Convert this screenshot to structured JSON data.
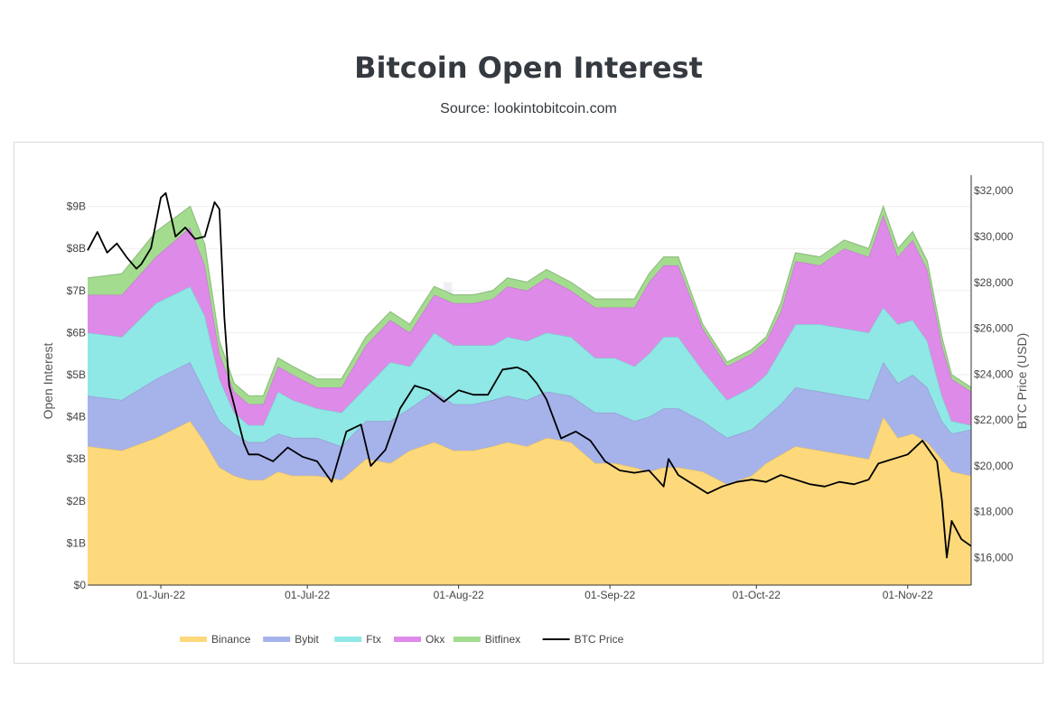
{
  "page": {
    "title": "Bitcoin Open Interest",
    "subtitle": "Source: lookintobitcoin.com",
    "watermark": [
      "look",
      "into",
      "bitcoin"
    ]
  },
  "colors": {
    "Binance": "#fdd97c",
    "Bybit": "#a6b2ea",
    "Ftx": "#8fe8e6",
    "Okx": "#de8ae9",
    "Bitfinex": "#a3dc8f",
    "BTC Price": "#000000"
  },
  "chart_data": {
    "type": "area",
    "stacked": true,
    "x_type": "date",
    "x_range": [
      "2022-05-17",
      "2022-11-14"
    ],
    "y_left": {
      "label": "Open Interest",
      "range": [
        0,
        9700000000
      ],
      "ticks": [
        0,
        1000000000,
        2000000000,
        3000000000,
        4000000000,
        5000000000,
        6000000000,
        7000000000,
        8000000000,
        9000000000
      ],
      "tick_labels": [
        "$0",
        "$1B",
        "$2B",
        "$3B",
        "$4B",
        "$5B",
        "$6B",
        "$7B",
        "$8B",
        "$9B"
      ]
    },
    "y_right": {
      "label": "BTC Price (USD)",
      "range": [
        14800,
        32600
      ],
      "ticks": [
        16000,
        18000,
        20000,
        22000,
        24000,
        26000,
        28000,
        30000,
        32000
      ],
      "tick_labels": [
        "$16,000",
        "$18,000",
        "$20,000",
        "$22,000",
        "$24,000",
        "$26,000",
        "$28,000",
        "$30,000",
        "$32,000"
      ]
    },
    "x_ticks": [
      "2022-06-01",
      "2022-07-01",
      "2022-08-01",
      "2022-09-01",
      "2022-10-01",
      "2022-11-01"
    ],
    "x_tick_labels": [
      "01-Jun-22",
      "01-Jul-22",
      "01-Aug-22",
      "01-Sep-22",
      "01-Oct-22",
      "01-Nov-22"
    ],
    "grid": true,
    "legend": "bottom",
    "series_order": [
      "Binance",
      "Bybit",
      "Ftx",
      "Okx",
      "Bitfinex"
    ],
    "dates": [
      "2022-05-17",
      "2022-05-24",
      "2022-05-31",
      "2022-06-07",
      "2022-06-10",
      "2022-06-13",
      "2022-06-16",
      "2022-06-19",
      "2022-06-22",
      "2022-06-25",
      "2022-06-28",
      "2022-07-03",
      "2022-07-08",
      "2022-07-13",
      "2022-07-18",
      "2022-07-22",
      "2022-07-27",
      "2022-07-31",
      "2022-08-04",
      "2022-08-08",
      "2022-08-11",
      "2022-08-15",
      "2022-08-19",
      "2022-08-24",
      "2022-08-29",
      "2022-09-02",
      "2022-09-06",
      "2022-09-09",
      "2022-09-12",
      "2022-09-15",
      "2022-09-20",
      "2022-09-25",
      "2022-09-30",
      "2022-10-03",
      "2022-10-06",
      "2022-10-09",
      "2022-10-14",
      "2022-10-19",
      "2022-10-24",
      "2022-10-27",
      "2022-10-30",
      "2022-11-02",
      "2022-11-05",
      "2022-11-08",
      "2022-11-10",
      "2022-11-14"
    ],
    "series": [
      {
        "name": "Binance",
        "values": [
          3.3,
          3.2,
          3.5,
          3.9,
          3.4,
          2.8,
          2.6,
          2.5,
          2.5,
          2.7,
          2.6,
          2.6,
          2.5,
          3.0,
          2.9,
          3.2,
          3.4,
          3.2,
          3.2,
          3.3,
          3.4,
          3.3,
          3.5,
          3.4,
          2.9,
          2.9,
          2.8,
          2.7,
          2.8,
          2.8,
          2.7,
          2.4,
          2.6,
          2.9,
          3.1,
          3.3,
          3.2,
          3.1,
          3.0,
          4.0,
          3.5,
          3.6,
          3.4,
          3.0,
          2.7,
          2.6
        ]
      },
      {
        "name": "Bybit",
        "values": [
          1.2,
          1.2,
          1.4,
          1.4,
          1.2,
          1.1,
          1.0,
          0.9,
          0.9,
          0.9,
          0.9,
          0.9,
          0.8,
          0.9,
          1.0,
          1.0,
          1.2,
          1.1,
          1.1,
          1.1,
          1.1,
          1.1,
          1.1,
          1.1,
          1.2,
          1.2,
          1.1,
          1.3,
          1.4,
          1.4,
          1.2,
          1.1,
          1.1,
          1.1,
          1.2,
          1.4,
          1.4,
          1.4,
          1.4,
          1.3,
          1.3,
          1.4,
          1.3,
          0.9,
          0.9,
          1.1
        ]
      },
      {
        "name": "Ftx",
        "values": [
          1.5,
          1.5,
          1.8,
          1.8,
          1.8,
          1.0,
          0.5,
          0.4,
          0.4,
          1.0,
          0.9,
          0.7,
          0.8,
          0.8,
          1.4,
          1.0,
          1.4,
          1.4,
          1.4,
          1.3,
          1.4,
          1.4,
          1.4,
          1.4,
          1.3,
          1.3,
          1.3,
          1.5,
          1.7,
          1.7,
          1.2,
          0.9,
          1.0,
          1.0,
          1.3,
          1.5,
          1.6,
          1.6,
          1.6,
          1.3,
          1.4,
          1.3,
          1.1,
          0.6,
          0.3,
          0.1
        ]
      },
      {
        "name": "Okx",
        "values": [
          0.9,
          1.0,
          1.1,
          1.4,
          1.2,
          0.6,
          0.5,
          0.5,
          0.5,
          0.6,
          0.6,
          0.5,
          0.6,
          1.0,
          1.0,
          0.8,
          0.9,
          1.0,
          1.0,
          1.1,
          1.2,
          1.2,
          1.3,
          1.1,
          1.2,
          1.2,
          1.4,
          1.7,
          1.7,
          1.7,
          1.0,
          0.8,
          0.8,
          0.8,
          0.9,
          1.5,
          1.4,
          1.9,
          1.8,
          2.2,
          1.6,
          1.9,
          1.7,
          1.2,
          1.0,
          0.8
        ]
      },
      {
        "name": "Bitfinex",
        "values": [
          0.4,
          0.5,
          0.6,
          0.5,
          0.5,
          0.3,
          0.2,
          0.2,
          0.2,
          0.2,
          0.2,
          0.2,
          0.2,
          0.2,
          0.2,
          0.2,
          0.2,
          0.2,
          0.2,
          0.2,
          0.2,
          0.2,
          0.2,
          0.2,
          0.2,
          0.2,
          0.2,
          0.2,
          0.2,
          0.2,
          0.1,
          0.1,
          0.1,
          0.1,
          0.2,
          0.2,
          0.2,
          0.2,
          0.2,
          0.2,
          0.2,
          0.2,
          0.2,
          0.2,
          0.1,
          0.1
        ]
      }
    ],
    "btc_price": {
      "name": "BTC Price",
      "dates": [
        "2022-05-17",
        "2022-05-19",
        "2022-05-21",
        "2022-05-23",
        "2022-05-25",
        "2022-05-27",
        "2022-05-28",
        "2022-05-30",
        "2022-06-01",
        "2022-06-02",
        "2022-06-04",
        "2022-06-06",
        "2022-06-08",
        "2022-06-10",
        "2022-06-12",
        "2022-06-13",
        "2022-06-14",
        "2022-06-15",
        "2022-06-18",
        "2022-06-19",
        "2022-06-21",
        "2022-06-24",
        "2022-06-27",
        "2022-06-30",
        "2022-07-03",
        "2022-07-06",
        "2022-07-09",
        "2022-07-12",
        "2022-07-14",
        "2022-07-17",
        "2022-07-20",
        "2022-07-23",
        "2022-07-26",
        "2022-07-29",
        "2022-08-01",
        "2022-08-04",
        "2022-08-07",
        "2022-08-10",
        "2022-08-13",
        "2022-08-15",
        "2022-08-17",
        "2022-08-19",
        "2022-08-22",
        "2022-08-25",
        "2022-08-28",
        "2022-08-31",
        "2022-09-03",
        "2022-09-06",
        "2022-09-09",
        "2022-09-12",
        "2022-09-13",
        "2022-09-15",
        "2022-09-18",
        "2022-09-21",
        "2022-09-24",
        "2022-09-27",
        "2022-09-30",
        "2022-10-03",
        "2022-10-06",
        "2022-10-09",
        "2022-10-12",
        "2022-10-15",
        "2022-10-18",
        "2022-10-21",
        "2022-10-24",
        "2022-10-26",
        "2022-10-29",
        "2022-11-01",
        "2022-11-04",
        "2022-11-07",
        "2022-11-08",
        "2022-11-09",
        "2022-11-10",
        "2022-11-12",
        "2022-11-14"
      ],
      "values": [
        29400,
        30200,
        29300,
        29700,
        29100,
        28600,
        28800,
        29500,
        31700,
        31900,
        30000,
        30400,
        29900,
        30000,
        31500,
        31200,
        26500,
        23500,
        21000,
        20500,
        20500,
        20200,
        20800,
        20400,
        20200,
        19300,
        21500,
        21800,
        20000,
        20700,
        22500,
        23500,
        23300,
        22800,
        23300,
        23100,
        23100,
        24200,
        24300,
        24100,
        23600,
        22900,
        21200,
        21500,
        21100,
        20200,
        19800,
        19700,
        19800,
        19100,
        20300,
        19600,
        19200,
        18800,
        19100,
        19300,
        19400,
        19300,
        19600,
        19400,
        19200,
        19100,
        19300,
        19200,
        19400,
        20100,
        20300,
        20500,
        21100,
        20200,
        18500,
        16000,
        17600,
        16800,
        16500
      ]
    },
    "legend_items": [
      "Binance",
      "Bybit",
      "Ftx",
      "Okx",
      "Bitfinex",
      "BTC Price"
    ]
  }
}
